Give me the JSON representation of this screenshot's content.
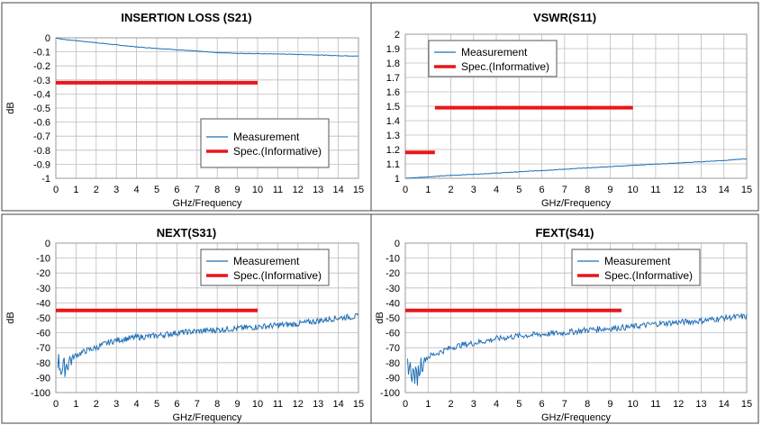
{
  "chart_data": [
    {
      "type": "line",
      "title": "INSERTION LOSS (S21)",
      "xlabel": "GHz/Frequency",
      "ylabel": "dB",
      "xlim": [
        0,
        15
      ],
      "ylim": [
        -1,
        0
      ],
      "x_ticks": [
        "0",
        "1",
        "2",
        "3",
        "4",
        "5",
        "6",
        "7",
        "8",
        "9",
        "10",
        "11",
        "12",
        "13",
        "14",
        "15"
      ],
      "y_ticks": [
        "0",
        "-0.1",
        "-0.2",
        "-0.3",
        "-0.4",
        "-0.5",
        "-0.6",
        "-0.7",
        "-0.8",
        "-0.9",
        "-1"
      ],
      "grid": true,
      "legend_position": "bottom-right",
      "series": [
        {
          "name": "Measurement",
          "color": "#1f6fb5",
          "x": [
            0,
            0.3,
            1,
            2,
            3,
            4,
            5,
            6,
            7,
            8,
            9,
            10,
            11,
            12,
            13,
            14,
            15
          ],
          "y": [
            0,
            -0.01,
            -0.02,
            -0.035,
            -0.05,
            -0.065,
            -0.075,
            -0.085,
            -0.095,
            -0.105,
            -0.11,
            -0.113,
            -0.115,
            -0.118,
            -0.122,
            -0.127,
            -0.13
          ],
          "noise": 0.002
        },
        {
          "name": "Spec.(Informative)",
          "color": "#e8161b",
          "x": [
            0,
            10
          ],
          "y": [
            -0.32,
            -0.32
          ]
        }
      ]
    },
    {
      "type": "line",
      "title": "VSWR(S11)",
      "xlabel": "GHz/Frequency",
      "ylabel": "",
      "xlim": [
        0,
        15
      ],
      "ylim": [
        1,
        2
      ],
      "x_ticks": [
        "0",
        "1",
        "2",
        "3",
        "4",
        "5",
        "6",
        "7",
        "8",
        "9",
        "10",
        "11",
        "12",
        "13",
        "14",
        "15"
      ],
      "y_ticks": [
        "2",
        "1.9",
        "1.8",
        "1.7",
        "1.6",
        "1.5",
        "1.4",
        "1.3",
        "1.2",
        "1.1",
        "1"
      ],
      "grid": true,
      "legend_position": "top-right",
      "series": [
        {
          "name": "Measurement",
          "color": "#1f6fb5",
          "x": [
            0,
            1,
            2,
            3,
            4,
            5,
            6,
            7,
            8,
            9,
            10,
            11,
            12,
            13,
            14,
            15
          ],
          "y": [
            1.0,
            1.01,
            1.02,
            1.028,
            1.036,
            1.045,
            1.054,
            1.063,
            1.072,
            1.081,
            1.09,
            1.098,
            1.106,
            1.115,
            1.124,
            1.135
          ],
          "noise": 0.002
        },
        {
          "name": "Spec.(Informative)",
          "color": "#e8161b",
          "segments": [
            {
              "x": [
                0,
                1.3
              ],
              "y": [
                1.18,
                1.18
              ]
            },
            {
              "x": [
                1.3,
                10
              ],
              "y": [
                1.49,
                1.49
              ]
            }
          ]
        }
      ]
    },
    {
      "type": "line",
      "title": "NEXT(S31)",
      "xlabel": "GHz/Frequency",
      "ylabel": "dB",
      "xlim": [
        0,
        15
      ],
      "ylim": [
        -100,
        0
      ],
      "x_ticks": [
        "0",
        "1",
        "2",
        "3",
        "4",
        "5",
        "6",
        "7",
        "8",
        "9",
        "10",
        "11",
        "12",
        "13",
        "14",
        "15"
      ],
      "y_ticks": [
        "0",
        "-10",
        "-20",
        "-30",
        "-40",
        "-50",
        "-60",
        "-70",
        "-80",
        "-90",
        "-100"
      ],
      "grid": true,
      "legend_position": "top-right",
      "series": [
        {
          "name": "Measurement",
          "color": "#1f6fb5",
          "x": [
            0.1,
            0.3,
            0.5,
            0.7,
            1,
            1.5,
            2,
            2.5,
            3,
            4,
            5,
            6,
            7,
            8,
            9,
            10,
            11,
            12,
            13,
            14,
            15
          ],
          "y": [
            -78,
            -85,
            -82,
            -78,
            -75,
            -72,
            -70,
            -67,
            -65,
            -63,
            -62,
            -60,
            -59,
            -58,
            -57,
            -56,
            -55,
            -54,
            -52,
            -50,
            -49
          ],
          "noise": 2.0
        },
        {
          "name": "Spec.(Informative)",
          "color": "#e8161b",
          "x": [
            0,
            10
          ],
          "y": [
            -45,
            -45
          ]
        }
      ]
    },
    {
      "type": "line",
      "title": "FEXT(S41)",
      "xlabel": "GHz/Frequency",
      "ylabel": "dB",
      "xlim": [
        0,
        15
      ],
      "ylim": [
        -100,
        0
      ],
      "x_ticks": [
        "0",
        "1",
        "2",
        "3",
        "4",
        "5",
        "6",
        "7",
        "8",
        "9",
        "10",
        "11",
        "12",
        "13",
        "14",
        "15"
      ],
      "y_ticks": [
        "0",
        "-10",
        "-20",
        "-30",
        "-40",
        "-50",
        "-60",
        "-70",
        "-80",
        "-90",
        "-100"
      ],
      "grid": true,
      "legend_position": "top-right",
      "series": [
        {
          "name": "Measurement",
          "color": "#1f6fb5",
          "x": [
            0.1,
            0.3,
            0.5,
            0.7,
            1,
            1.5,
            2,
            2.5,
            3,
            4,
            5,
            6,
            7,
            8,
            9,
            10,
            11,
            12,
            13,
            14,
            15
          ],
          "y": [
            -80,
            -87,
            -90,
            -80,
            -76,
            -73,
            -70,
            -68,
            -67,
            -64,
            -62,
            -61,
            -60,
            -58,
            -57,
            -56,
            -54,
            -53,
            -52,
            -50,
            -49
          ],
          "noise": 2.0
        },
        {
          "name": "Spec.(Informative)",
          "color": "#e8161b",
          "x": [
            0,
            9.5
          ],
          "y": [
            -45,
            -45
          ]
        }
      ]
    }
  ]
}
